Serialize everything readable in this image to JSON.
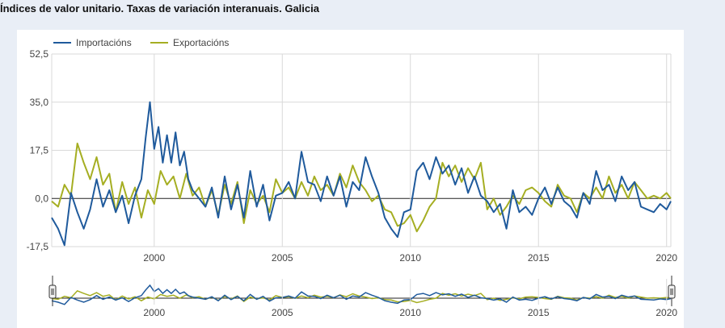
{
  "page": {
    "title": "Índices de valor unitario. Taxas de variación interanuais. Galicia"
  },
  "colors": {
    "importacions": "#1f5a9c",
    "exportacions": "#a5ae22",
    "grid": "#d9d9d9",
    "zero_line": "#222222",
    "background": "#e9eef6"
  },
  "chart_data": {
    "type": "line",
    "title": "Índices de valor unitario. Taxas de variación interanuais. Galicia",
    "xlabel": "",
    "ylabel": "",
    "x_range": [
      "1996-01",
      "2020-03"
    ],
    "ylim": [
      -17.5,
      52.5
    ],
    "y_ticks": [
      "52,5",
      "35,0",
      "17,5",
      "0,0",
      "-17,5"
    ],
    "x_ticks": [
      "2000",
      "2005",
      "2010",
      "2015",
      "2020"
    ],
    "grid": true,
    "legend": "top-left",
    "navigator": true,
    "series": [
      {
        "name": "Importacións",
        "color": "#1f5a9c",
        "points": [
          [
            "1996-01",
            -7
          ],
          [
            "1996-04",
            -11
          ],
          [
            "1996-07",
            -17
          ],
          [
            "1996-10",
            2
          ],
          [
            "1997-01",
            -5
          ],
          [
            "1997-04",
            -11
          ],
          [
            "1997-07",
            -4
          ],
          [
            "1997-10",
            7
          ],
          [
            "1998-01",
            -3
          ],
          [
            "1998-04",
            3
          ],
          [
            "1998-07",
            -5
          ],
          [
            "1998-10",
            1
          ],
          [
            "1999-01",
            -9
          ],
          [
            "1999-04",
            1
          ],
          [
            "1999-07",
            7
          ],
          [
            "1999-09",
            22
          ],
          [
            "1999-11",
            35
          ],
          [
            "2000-01",
            18
          ],
          [
            "2000-03",
            26
          ],
          [
            "2000-05",
            13
          ],
          [
            "2000-07",
            23
          ],
          [
            "2000-09",
            13
          ],
          [
            "2000-11",
            24
          ],
          [
            "2001-01",
            12
          ],
          [
            "2001-03",
            17
          ],
          [
            "2001-05",
            7
          ],
          [
            "2001-07",
            3
          ],
          [
            "2001-10",
            0
          ],
          [
            "2002-01",
            -3
          ],
          [
            "2002-04",
            4
          ],
          [
            "2002-07",
            -7
          ],
          [
            "2002-10",
            8
          ],
          [
            "2003-01",
            -4
          ],
          [
            "2003-04",
            5
          ],
          [
            "2003-07",
            -7
          ],
          [
            "2003-10",
            10
          ],
          [
            "2004-01",
            -3
          ],
          [
            "2004-04",
            5
          ],
          [
            "2004-07",
            -8
          ],
          [
            "2004-10",
            1
          ],
          [
            "2005-01",
            2
          ],
          [
            "2005-04",
            6
          ],
          [
            "2005-07",
            0
          ],
          [
            "2005-10",
            17
          ],
          [
            "2006-01",
            6
          ],
          [
            "2006-04",
            5
          ],
          [
            "2006-07",
            -1
          ],
          [
            "2006-10",
            8
          ],
          [
            "2007-01",
            1
          ],
          [
            "2007-04",
            8
          ],
          [
            "2007-07",
            -3
          ],
          [
            "2007-10",
            6
          ],
          [
            "2008-01",
            3
          ],
          [
            "2008-04",
            15
          ],
          [
            "2008-07",
            8
          ],
          [
            "2008-10",
            2
          ],
          [
            "2009-01",
            -7
          ],
          [
            "2009-04",
            -11
          ],
          [
            "2009-07",
            -14
          ],
          [
            "2009-10",
            -5
          ],
          [
            "2010-01",
            -4
          ],
          [
            "2010-04",
            10
          ],
          [
            "2010-07",
            13
          ],
          [
            "2010-10",
            7
          ],
          [
            "2011-01",
            15
          ],
          [
            "2011-04",
            9
          ],
          [
            "2011-07",
            12
          ],
          [
            "2011-10",
            5
          ],
          [
            "2012-01",
            11
          ],
          [
            "2012-04",
            2
          ],
          [
            "2012-07",
            8
          ],
          [
            "2012-10",
            1
          ],
          [
            "2013-01",
            -1
          ],
          [
            "2013-04",
            -5
          ],
          [
            "2013-07",
            -2
          ],
          [
            "2013-10",
            -11
          ],
          [
            "2014-01",
            3
          ],
          [
            "2014-04",
            -5
          ],
          [
            "2014-07",
            -3
          ],
          [
            "2014-10",
            -6
          ],
          [
            "2015-01",
            0
          ],
          [
            "2015-04",
            4
          ],
          [
            "2015-07",
            -2
          ],
          [
            "2015-10",
            4
          ],
          [
            "2016-01",
            -1
          ],
          [
            "2016-04",
            -3
          ],
          [
            "2016-07",
            -7
          ],
          [
            "2016-10",
            2
          ],
          [
            "2017-01",
            -2
          ],
          [
            "2017-04",
            10
          ],
          [
            "2017-07",
            3
          ],
          [
            "2017-10",
            5
          ],
          [
            "2018-01",
            -1
          ],
          [
            "2018-04",
            8
          ],
          [
            "2018-07",
            3
          ],
          [
            "2018-10",
            6
          ],
          [
            "2019-01",
            -3
          ],
          [
            "2019-04",
            -4
          ],
          [
            "2019-07",
            -5
          ],
          [
            "2019-10",
            -2
          ],
          [
            "2020-01",
            -4
          ],
          [
            "2020-03",
            -1
          ]
        ]
      },
      {
        "name": "Exportacións",
        "color": "#a5ae22",
        "points": [
          [
            "1996-01",
            -1
          ],
          [
            "1996-04",
            -3
          ],
          [
            "1996-07",
            5
          ],
          [
            "1996-10",
            1
          ],
          [
            "1997-01",
            20
          ],
          [
            "1997-04",
            13
          ],
          [
            "1997-07",
            7
          ],
          [
            "1997-10",
            15
          ],
          [
            "1998-01",
            5
          ],
          [
            "1998-04",
            9
          ],
          [
            "1998-07",
            -5
          ],
          [
            "1998-10",
            6
          ],
          [
            "1999-01",
            -2
          ],
          [
            "1999-04",
            4
          ],
          [
            "1999-07",
            -7
          ],
          [
            "1999-10",
            3
          ],
          [
            "2000-01",
            -2
          ],
          [
            "2000-04",
            10
          ],
          [
            "2000-07",
            5
          ],
          [
            "2000-10",
            8
          ],
          [
            "2001-01",
            0
          ],
          [
            "2001-04",
            9
          ],
          [
            "2001-07",
            1
          ],
          [
            "2001-10",
            4
          ],
          [
            "2002-01",
            -3
          ],
          [
            "2002-04",
            3
          ],
          [
            "2002-07",
            -6
          ],
          [
            "2002-10",
            5
          ],
          [
            "2003-01",
            -2
          ],
          [
            "2003-04",
            6
          ],
          [
            "2003-07",
            -9
          ],
          [
            "2003-10",
            3
          ],
          [
            "2004-01",
            -2
          ],
          [
            "2004-04",
            1
          ],
          [
            "2004-07",
            -5
          ],
          [
            "2004-10",
            7
          ],
          [
            "2005-01",
            2
          ],
          [
            "2005-04",
            4
          ],
          [
            "2005-07",
            0
          ],
          [
            "2005-10",
            6
          ],
          [
            "2006-01",
            1
          ],
          [
            "2006-04",
            8
          ],
          [
            "2006-07",
            3
          ],
          [
            "2006-10",
            5
          ],
          [
            "2007-01",
            1
          ],
          [
            "2007-04",
            9
          ],
          [
            "2007-07",
            4
          ],
          [
            "2007-10",
            12
          ],
          [
            "2008-01",
            6
          ],
          [
            "2008-04",
            3
          ],
          [
            "2008-07",
            -1
          ],
          [
            "2008-10",
            1
          ],
          [
            "2009-01",
            -4
          ],
          [
            "2009-04",
            -5
          ],
          [
            "2009-07",
            -10
          ],
          [
            "2009-10",
            -9
          ],
          [
            "2010-01",
            -6
          ],
          [
            "2010-04",
            -12
          ],
          [
            "2010-07",
            -8
          ],
          [
            "2010-10",
            -3
          ],
          [
            "2011-01",
            0
          ],
          [
            "2011-04",
            13
          ],
          [
            "2011-07",
            8
          ],
          [
            "2011-10",
            12
          ],
          [
            "2012-01",
            6
          ],
          [
            "2012-04",
            11
          ],
          [
            "2012-07",
            7
          ],
          [
            "2012-10",
            13
          ],
          [
            "2013-01",
            -4
          ],
          [
            "2013-04",
            0
          ],
          [
            "2013-07",
            -6
          ],
          [
            "2013-10",
            -3
          ],
          [
            "2014-01",
            1
          ],
          [
            "2014-04",
            -2
          ],
          [
            "2014-07",
            3
          ],
          [
            "2014-10",
            4
          ],
          [
            "2015-01",
            2
          ],
          [
            "2015-04",
            -1
          ],
          [
            "2015-07",
            -3
          ],
          [
            "2015-10",
            5
          ],
          [
            "2016-01",
            1
          ],
          [
            "2016-04",
            0
          ],
          [
            "2016-07",
            -5
          ],
          [
            "2016-10",
            2
          ],
          [
            "2017-01",
            0
          ],
          [
            "2017-04",
            4
          ],
          [
            "2017-07",
            0
          ],
          [
            "2017-10",
            8
          ],
          [
            "2018-01",
            2
          ],
          [
            "2018-04",
            5
          ],
          [
            "2018-07",
            0
          ],
          [
            "2018-10",
            6
          ],
          [
            "2019-01",
            3
          ],
          [
            "2019-04",
            0
          ],
          [
            "2019-07",
            1
          ],
          [
            "2019-10",
            0
          ],
          [
            "2020-01",
            2
          ],
          [
            "2020-03",
            0
          ]
        ]
      }
    ]
  }
}
